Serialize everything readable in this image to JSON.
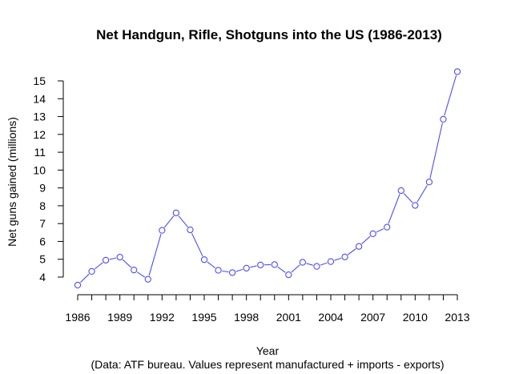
{
  "chart_data": {
    "type": "line",
    "title": "Net Handgun, Rifle, Shotguns into the US (1986-2013)",
    "xlabel": "Year",
    "ylabel": "Net guns gained (millions)",
    "note": "(Data: ATF bureau. Values represent manufactured + imports - exports)",
    "xlim": [
      1986,
      2013
    ],
    "ylim": [
      3.5,
      15.5
    ],
    "xticks": [
      1986,
      1989,
      1992,
      1995,
      1998,
      2001,
      2004,
      2007,
      2010,
      2013
    ],
    "yticks": [
      4,
      5,
      6,
      7,
      8,
      9,
      10,
      11,
      12,
      13,
      14,
      15
    ],
    "grid": false,
    "line_color": "#3b3bff",
    "series": [
      {
        "x": [
          1986,
          1987,
          1988,
          1989,
          1990,
          1991,
          1992,
          1993,
          1994,
          1995,
          1996,
          1997,
          1998,
          1999,
          2000,
          2001,
          2002,
          2003,
          2004,
          2005,
          2006,
          2007,
          2008,
          2009,
          2010,
          2011,
          2012,
          2013
        ],
        "values": [
          3.55,
          4.32,
          4.95,
          5.12,
          4.4,
          3.88,
          6.62,
          7.6,
          6.65,
          4.98,
          4.38,
          4.25,
          4.5,
          4.68,
          4.7,
          4.13,
          4.83,
          4.6,
          4.87,
          5.13,
          5.72,
          6.43,
          6.8,
          8.85,
          8.02,
          9.33,
          12.85,
          15.52
        ]
      }
    ]
  }
}
